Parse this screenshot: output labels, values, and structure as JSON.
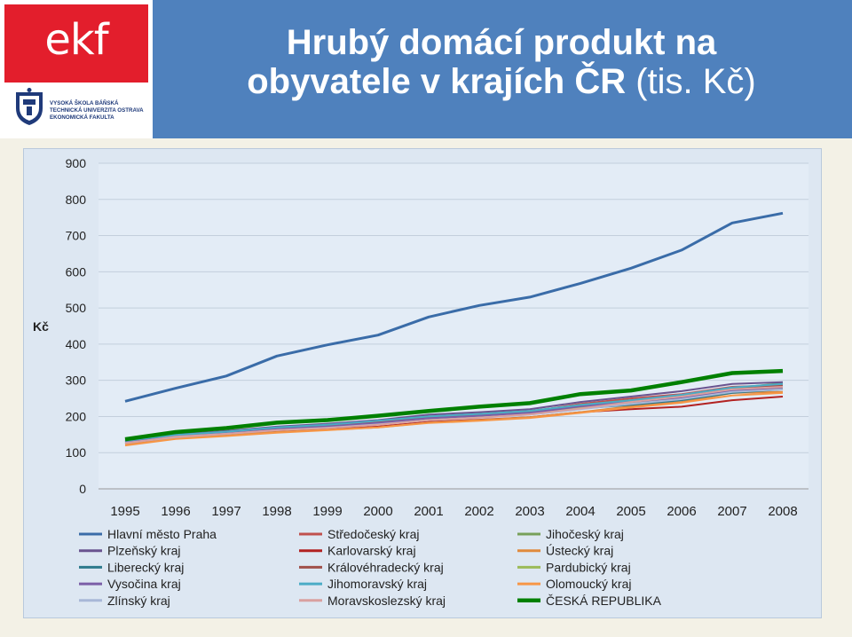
{
  "header": {
    "logo_text": "ekf",
    "university_lines": [
      "VYSOKÁ ŠKOLA BÁŇSKÁ",
      "TECHNICKÁ UNIVERZITA OSTRAVA",
      "EKONOMICKÁ FAKULTA"
    ],
    "title_line1": "Hrubý domácí produkt na",
    "title_line2_bold": "obyvatele v krajích ČR",
    "title_line2_light": " (tis. Kč)"
  },
  "colors": {
    "header_bg": "#4f81bd",
    "logo_red": "#e31e2c",
    "plot_bg": "#dde7f2"
  },
  "chart_data": {
    "type": "line",
    "title": "",
    "xlabel": "",
    "ylabel": "Kč",
    "ylim": [
      0,
      900
    ],
    "yticks": [
      0,
      100,
      200,
      300,
      400,
      500,
      600,
      700,
      800,
      900
    ],
    "grid": true,
    "legend_position": "bottom",
    "categories": [
      "1995",
      "1996",
      "1997",
      "1998",
      "1999",
      "2000",
      "2001",
      "2002",
      "2003",
      "2004",
      "2005",
      "2006",
      "2007",
      "2008"
    ],
    "series": [
      {
        "name": "Hlavní město Praha",
        "color": "#3a6ca8",
        "values": [
          242,
          278,
          312,
          367,
          398,
          425,
          475,
          507,
          530,
          568,
          610,
          660,
          735,
          762
        ]
      },
      {
        "name": "Středočeský kraj",
        "color": "#c0504d",
        "values": [
          132,
          148,
          155,
          168,
          175,
          185,
          198,
          205,
          213,
          235,
          250,
          262,
          282,
          287
        ]
      },
      {
        "name": "Jihočeský kraj",
        "color": "#77a05a",
        "values": [
          133,
          148,
          158,
          170,
          177,
          187,
          200,
          207,
          215,
          232,
          245,
          258,
          278,
          292
        ]
      },
      {
        "name": "Plzeňský kraj",
        "color": "#6a548f",
        "values": [
          134,
          150,
          160,
          172,
          180,
          190,
          205,
          212,
          220,
          240,
          255,
          270,
          290,
          295
        ]
      },
      {
        "name": "Karlovarský kraj",
        "color": "#b22222",
        "values": [
          125,
          143,
          150,
          158,
          164,
          172,
          185,
          191,
          198,
          212,
          220,
          227,
          245,
          255
        ]
      },
      {
        "name": "Ústecký kraj",
        "color": "#e08a3c",
        "values": [
          124,
          140,
          148,
          157,
          163,
          170,
          183,
          190,
          198,
          212,
          228,
          240,
          265,
          268
        ]
      },
      {
        "name": "Liberecký kraj",
        "color": "#2e7a8c",
        "values": [
          130,
          146,
          154,
          164,
          170,
          180,
          192,
          198,
          206,
          222,
          232,
          245,
          265,
          275
        ]
      },
      {
        "name": "Královéhradecký kraj",
        "color": "#a0504a",
        "values": [
          132,
          148,
          157,
          168,
          175,
          185,
          197,
          205,
          213,
          228,
          240,
          255,
          275,
          285
        ]
      },
      {
        "name": "Pardubický kraj",
        "color": "#9bbb59",
        "values": [
          128,
          145,
          153,
          163,
          170,
          180,
          193,
          200,
          208,
          225,
          238,
          250,
          270,
          278
        ]
      },
      {
        "name": "Vysočina kraj",
        "color": "#7b5ea7",
        "values": [
          129,
          145,
          154,
          165,
          172,
          182,
          195,
          202,
          210,
          228,
          240,
          252,
          272,
          280
        ]
      },
      {
        "name": "Jihomoravský kraj",
        "color": "#4bacc6",
        "values": [
          133,
          149,
          158,
          170,
          177,
          188,
          200,
          207,
          215,
          232,
          245,
          260,
          280,
          290
        ]
      },
      {
        "name": "Olomoucký kraj",
        "color": "#f79646",
        "values": [
          120,
          138,
          146,
          155,
          162,
          170,
          182,
          188,
          196,
          210,
          225,
          238,
          258,
          265
        ]
      },
      {
        "name": "Zlínský kraj",
        "color": "#a8b8d8",
        "values": [
          127,
          143,
          152,
          162,
          169,
          178,
          190,
          197,
          205,
          220,
          235,
          248,
          268,
          275
        ]
      },
      {
        "name": "Moravskoslezský kraj",
        "color": "#d9a0a0",
        "values": [
          126,
          144,
          152,
          162,
          168,
          177,
          190,
          197,
          206,
          222,
          240,
          255,
          275,
          282
        ]
      },
      {
        "name": "ČESKÁ REPUBLIKA",
        "color": "#008000",
        "values": [
          137,
          157,
          168,
          183,
          190,
          202,
          215,
          227,
          237,
          262,
          272,
          295,
          320,
          326
        ]
      }
    ]
  }
}
